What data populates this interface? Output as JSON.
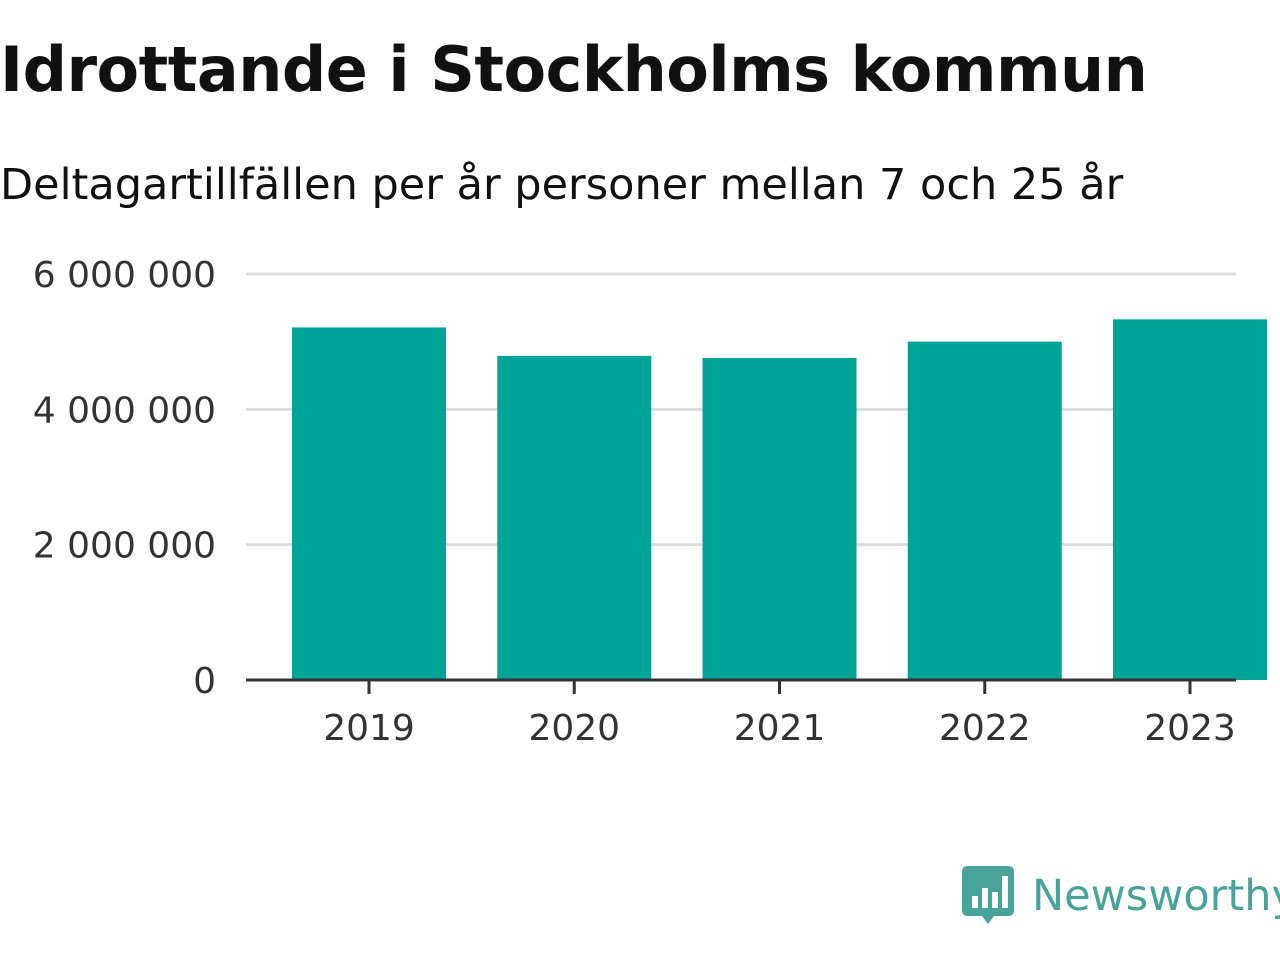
{
  "title": "Idrottande i Stockholms kommun",
  "subtitle": "Deltagartillfällen per år personer mellan 7 och 25 år",
  "colors": {
    "bar": "#00a398",
    "grid": "#dddddd",
    "axis": "#333333",
    "logo": "#48a39a"
  },
  "chart_data": {
    "type": "bar",
    "categories": [
      "2019",
      "2020",
      "2021",
      "2022",
      "2023"
    ],
    "values": [
      5210000,
      4790000,
      4760000,
      5000000,
      5330000
    ],
    "ylim": [
      0,
      6000000
    ],
    "yticks": [
      0,
      2000000,
      4000000,
      6000000
    ],
    "ytick_labels": [
      "0",
      "2 000 000",
      "4 000 000",
      "6 000 000"
    ],
    "grid": true
  },
  "logo": {
    "text": "Newsworthy",
    "icon": "newsworthy-logo-icon"
  }
}
